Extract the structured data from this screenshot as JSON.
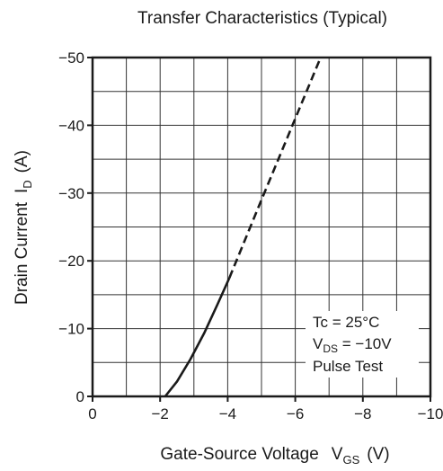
{
  "chart_data": {
    "type": "line",
    "title": "Transfer Characteristics (Typical)",
    "xlabel": {
      "main": "Gate-Source Voltage",
      "symbol": "V",
      "subscript": "GS",
      "unit": "(V)"
    },
    "ylabel": {
      "main": "Drain Current",
      "symbol": "I",
      "subscript": "D",
      "unit": "(A)"
    },
    "xlim": [
      0,
      -10
    ],
    "ylim": [
      0,
      -50
    ],
    "x_ticks": [
      0,
      -2,
      -4,
      -6,
      -8,
      -10
    ],
    "x_tick_labels": [
      "0",
      "−2",
      "−4",
      "−6",
      "−8",
      "−10"
    ],
    "y_ticks": [
      0,
      -10,
      -20,
      -30,
      -40,
      -50
    ],
    "y_tick_labels": [
      "0",
      "−10",
      "−20",
      "−30",
      "−40",
      "−50"
    ],
    "grid": true,
    "grid_x_step": -1,
    "grid_y_step": -5,
    "series": [
      {
        "style": "solid",
        "x": [
          -2.15,
          -2.5,
          -2.9,
          -3.3,
          -3.7,
          -4.05
        ],
        "y": [
          0,
          -2.2,
          -5.5,
          -9.3,
          -13.6,
          -17.5
        ]
      },
      {
        "style": "dashed",
        "x": [
          -4.05,
          -5.0,
          -6.0,
          -6.75
        ],
        "y": [
          -17.5,
          -29.0,
          -41.0,
          -50.0
        ]
      }
    ],
    "annotation_box": {
      "lines": [
        {
          "text": "Tc = 25°C"
        },
        {
          "main": "V",
          "subscript": "DS",
          "tail": " = −10V"
        },
        {
          "text": "Pulse Test"
        }
      ]
    }
  }
}
